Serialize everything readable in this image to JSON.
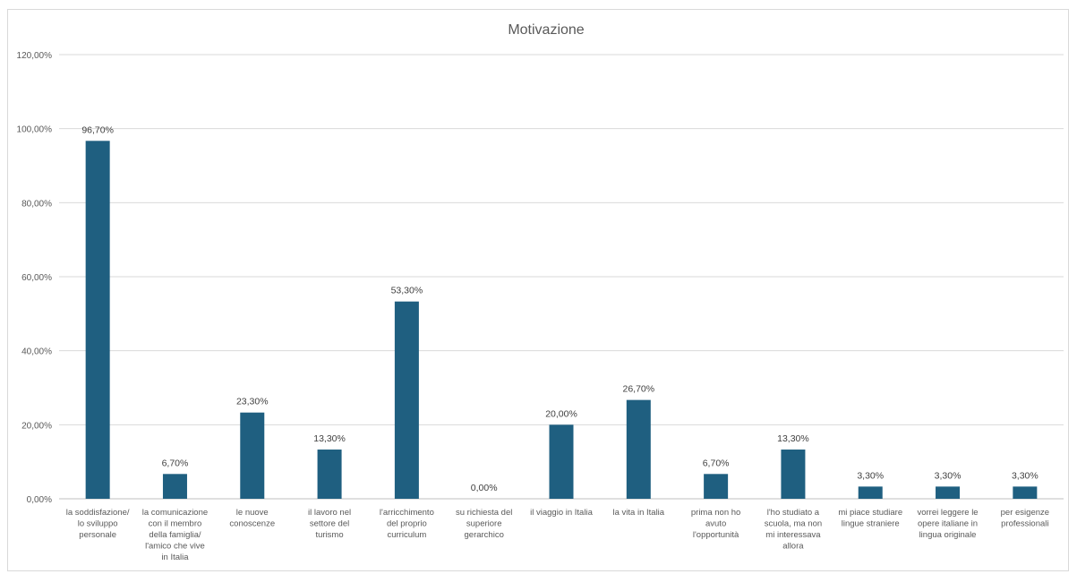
{
  "chart_data": {
    "type": "bar",
    "title": "Motivazione",
    "xlabel": "",
    "ylabel": "",
    "ylim": [
      0,
      120
    ],
    "yticks": [
      "0,00%",
      "20,00%",
      "40,00%",
      "60,00%",
      "80,00%",
      "100,00%",
      "120,00%"
    ],
    "grid": true,
    "legend": "none",
    "bar_color": "#1f5f80",
    "categories": [
      [
        "la soddisfazione/",
        "lo sviluppo",
        "personale"
      ],
      [
        "la comunicazione",
        "con il membro",
        "della famiglia/",
        "l'amico che vive",
        "in Italia"
      ],
      [
        "le nuove",
        "conoscenze"
      ],
      [
        "il lavoro nel",
        "settore del",
        "turismo"
      ],
      [
        "l'arricchimento",
        "del proprio",
        "curriculum"
      ],
      [
        "su richiesta del",
        "superiore",
        "gerarchico"
      ],
      [
        "il viaggio in Italia"
      ],
      [
        "la vita in Italia"
      ],
      [
        "prima non ho",
        "avuto",
        "l'opportunità"
      ],
      [
        "l'ho studiato a",
        "scuola, ma non",
        "mi interessava",
        "allora"
      ],
      [
        "mi piace studiare",
        "lingue straniere"
      ],
      [
        "vorrei leggere le",
        "opere italiane in",
        "lingua originale"
      ],
      [
        "per esigenze",
        "professionali"
      ]
    ],
    "values": [
      96.7,
      6.7,
      23.3,
      13.3,
      53.3,
      0.0,
      20.0,
      26.7,
      6.7,
      13.3,
      3.3,
      3.3,
      3.3
    ],
    "data_labels": [
      "96,70%",
      "6,70%",
      "23,30%",
      "13,30%",
      "53,30%",
      "0,00%",
      "20,00%",
      "26,70%",
      "6,70%",
      "13,30%",
      "3,30%",
      "3,30%",
      "3,30%"
    ]
  }
}
